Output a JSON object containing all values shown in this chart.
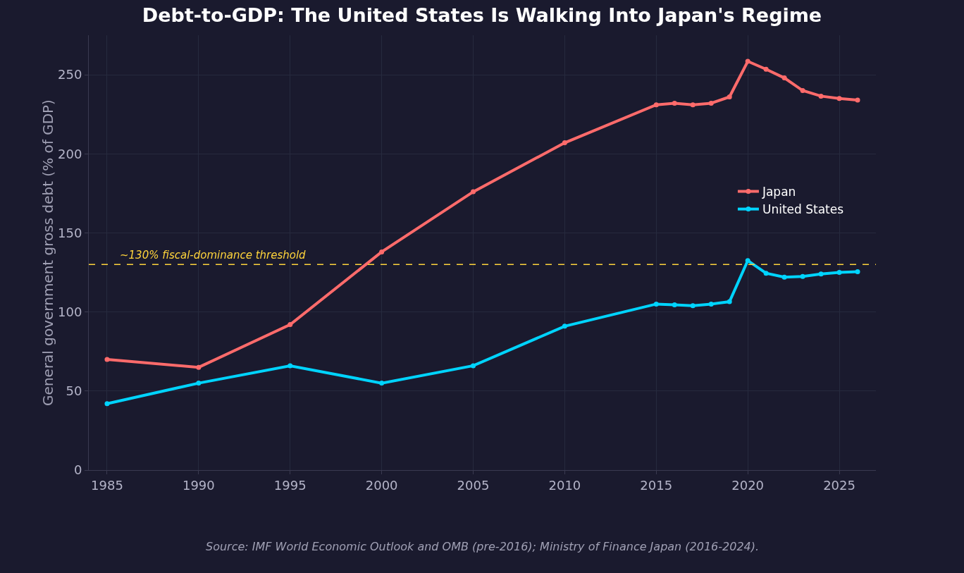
{
  "chart_data": {
    "type": "line",
    "title": "Debt-to-GDP: The United States Is Walking Into Japan's Regime",
    "ylabel": "General government gross debt (% of GDP)",
    "x": [
      1985,
      1990,
      1995,
      2000,
      2005,
      2010,
      2015,
      2016,
      2017,
      2018,
      2019,
      2020,
      2021,
      2022,
      2023,
      2024,
      2025,
      2026
    ],
    "series": [
      {
        "name": "Japan",
        "color": "#ff6b6b",
        "values": [
          70,
          65,
          92,
          138,
          176,
          207,
          231,
          232,
          231,
          232,
          236,
          258.5,
          253.5,
          248,
          240,
          236.5,
          235,
          234
        ]
      },
      {
        "name": "United States",
        "color": "#00d4ff",
        "values": [
          42,
          55,
          66,
          55,
          66,
          91,
          105,
          104.5,
          104,
          105,
          106.5,
          132.5,
          124.5,
          122,
          122.5,
          124,
          125,
          125.5
        ]
      }
    ],
    "xlim": [
      1984,
      2027
    ],
    "xticks": [
      1985,
      1990,
      1995,
      2000,
      2005,
      2010,
      2015,
      2020,
      2025
    ],
    "ylim": [
      0,
      275
    ],
    "yticks": [
      0,
      50,
      100,
      150,
      200,
      250
    ],
    "ref_lines": [
      {
        "axis": "y",
        "value": 130,
        "label": "~130% fiscal-dominance threshold",
        "color": "#ffd43b",
        "line_style": "dashed"
      }
    ],
    "annotations": [
      "Source: IMF World Economic Outlook and OMB (pre-2016); Ministry of Finance Japan (2016-2024)."
    ],
    "grid": true,
    "legend": "right",
    "marker": "circle",
    "line_style": "solid"
  }
}
